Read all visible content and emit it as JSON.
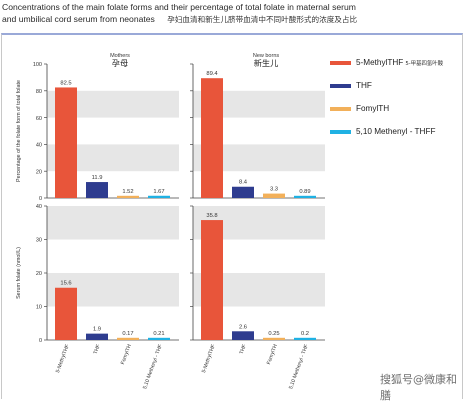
{
  "header": {
    "line1": "Concentrations of the main folate forms and their percentage of total folate in maternal serum",
    "line2_en": "and umbilical cord serum from neonates",
    "line2_zh": "孕妇血清和新生儿脐带血清中不同叶酸形式的浓度及占比"
  },
  "watermark": "搜狐号@微康和膳",
  "colors": {
    "methylthf": "#e8553a",
    "thf": "#2e3c8f",
    "formylthf": "#f2b05a",
    "methenylthf": "#1fb1e3",
    "band": "#e6e6e6",
    "axis": "#444444"
  },
  "legend": [
    {
      "label": "5-MethylTHF",
      "zh": "5-甲基四氢叶酸",
      "color_key": "methylthf"
    },
    {
      "label": "THF",
      "zh": "",
      "color_key": "thf"
    },
    {
      "label": "FomylTH",
      "zh": "",
      "color_key": "formylthf"
    },
    {
      "label": "5,10 Methenyl - THFF",
      "zh": "",
      "color_key": "methenylthf"
    }
  ],
  "chart_data": [
    {
      "type": "bar",
      "title": "Mothers",
      "title_zh": "孕母",
      "ylabel": "Percentage of the folate form of total folate",
      "ylim": [
        0,
        100
      ],
      "yticks": [
        0,
        20,
        40,
        60,
        80,
        100
      ],
      "grid_bands": [
        [
          20,
          40
        ],
        [
          60,
          80
        ]
      ],
      "categories": [
        "5-MethylTHF",
        "THF",
        "FomylTH",
        "5,10 Methenyl - THF"
      ],
      "values": [
        82.5,
        11.9,
        1.52,
        1.67
      ],
      "value_labels": [
        "82.5",
        "11.9",
        "1.52",
        "1.67"
      ]
    },
    {
      "type": "bar",
      "title": "New borns",
      "title_zh": "新生儿",
      "ylabel": "",
      "ylim": [
        0,
        100
      ],
      "yticks": [
        0,
        20,
        40,
        60,
        80,
        100
      ],
      "grid_bands": [
        [
          20,
          40
        ],
        [
          60,
          80
        ]
      ],
      "categories": [
        "5-MethylTHF",
        "THF",
        "FomylTH",
        "5,10 Methenyl - THF"
      ],
      "values": [
        89.4,
        8.4,
        3.3,
        0.89
      ],
      "value_labels": [
        "89.4",
        "8.4",
        "3.3",
        "0.89"
      ]
    },
    {
      "type": "bar",
      "title": "",
      "ylabel": "Serum folate (nmol/L)",
      "ylim": [
        0,
        40
      ],
      "yticks": [
        0,
        10,
        20,
        30,
        40
      ],
      "grid_bands": [
        [
          10,
          20
        ],
        [
          30,
          40
        ]
      ],
      "categories": [
        "5-MethylTHF",
        "THF",
        "FomylTH",
        "5,10 Methenyl - THF"
      ],
      "values": [
        15.6,
        1.9,
        0.17,
        0.21
      ],
      "value_labels": [
        "15.6",
        "1.9",
        "0.17",
        "0.21"
      ]
    },
    {
      "type": "bar",
      "title": "",
      "ylabel": "",
      "ylim": [
        0,
        40
      ],
      "yticks": [
        0,
        10,
        20,
        30,
        40
      ],
      "grid_bands": [
        [
          10,
          20
        ],
        [
          30,
          40
        ]
      ],
      "categories": [
        "5-MethylTHF",
        "THF",
        "FomylTH",
        "5,10 Methenyl - THF"
      ],
      "values": [
        35.8,
        2.6,
        0.25,
        0.2
      ],
      "value_labels": [
        "35.8",
        "2.6",
        "0.25",
        "0.2"
      ]
    }
  ]
}
